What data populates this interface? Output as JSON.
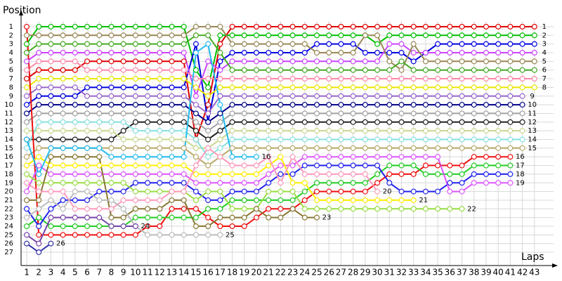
{
  "chart_data": {
    "type": "line",
    "y_label": "Position",
    "x_label": "Laps",
    "x": [
      1,
      2,
      3,
      4,
      5,
      6,
      7,
      8,
      9,
      10,
      11,
      12,
      13,
      14,
      15,
      16,
      17,
      18,
      19,
      20,
      21,
      22,
      23,
      24,
      25,
      26,
      27,
      28,
      29,
      30,
      31,
      32,
      33,
      34,
      35,
      36,
      37,
      38,
      39,
      40,
      41,
      42,
      43
    ],
    "xlim": [
      0,
      44
    ],
    "xticks": [
      1,
      2,
      3,
      4,
      5,
      6,
      7,
      8,
      9,
      10,
      11,
      12,
      13,
      14,
      15,
      16,
      17,
      18,
      19,
      20,
      21,
      22,
      23,
      24,
      25,
      26,
      27,
      28,
      29,
      30,
      31,
      32,
      33,
      34,
      35,
      36,
      37,
      38,
      39,
      40,
      41,
      42,
      43
    ],
    "ylim": [
      0,
      28
    ],
    "y_reversed": true,
    "yticks": [
      1,
      2,
      3,
      4,
      5,
      6,
      7,
      8,
      9,
      10,
      11,
      12,
      13,
      14,
      15,
      16,
      17,
      18,
      19,
      20,
      21,
      22,
      23,
      24,
      25,
      26,
      27
    ],
    "grid": true,
    "series": [
      {
        "color": "#e00000",
        "values": [
          7,
          6,
          6,
          6,
          6,
          5,
          5,
          5,
          5,
          5,
          5,
          5,
          5,
          5,
          14,
          10,
          3,
          1,
          1,
          1,
          1,
          1,
          1,
          1,
          1,
          1,
          1,
          1,
          1,
          1,
          1,
          1,
          1,
          1,
          1,
          1,
          1,
          1,
          1,
          1,
          1,
          1,
          1
        ]
      },
      {
        "color": "#00c000",
        "values": [
          3,
          1,
          1,
          1,
          1,
          1,
          1,
          1,
          1,
          1,
          1,
          1,
          1,
          1,
          6,
          8,
          2,
          2,
          2,
          2,
          2,
          2,
          2,
          2,
          2,
          2,
          2,
          2,
          2,
          3,
          2,
          2,
          2,
          2,
          2,
          2,
          2,
          2,
          2,
          2,
          2,
          2,
          2
        ]
      },
      {
        "color": "#0000e0",
        "values": [
          10,
          9,
          9,
          9,
          9,
          8,
          8,
          8,
          8,
          8,
          8,
          8,
          8,
          8,
          3,
          12,
          5,
          4,
          4,
          4,
          4,
          4,
          4,
          4,
          3,
          3,
          3,
          3,
          4,
          4,
          4,
          4,
          5,
          4,
          3,
          3,
          3,
          3,
          3,
          3,
          3,
          3,
          3
        ]
      },
      {
        "color": "#cc44ff",
        "values": [
          5,
          4,
          4,
          4,
          4,
          4,
          4,
          4,
          4,
          4,
          4,
          4,
          4,
          4,
          9,
          5,
          6,
          5,
          5,
          5,
          5,
          5,
          5,
          5,
          5,
          5,
          5,
          5,
          5,
          5,
          3,
          3,
          4,
          4,
          4,
          4,
          4,
          4,
          4,
          4,
          4,
          4,
          4
        ]
      },
      {
        "color": "#998855",
        "values": [
          2,
          2,
          2,
          2,
          2,
          2,
          2,
          2,
          2,
          2,
          2,
          2,
          2,
          2,
          1,
          1,
          1,
          3,
          3,
          3,
          3,
          3,
          3,
          3,
          4,
          4,
          4,
          4,
          2,
          2,
          5,
          6,
          3,
          5,
          5,
          5,
          5,
          5,
          5,
          5,
          5,
          5,
          5
        ]
      },
      {
        "color": "#44aa22",
        "values": [
          4,
          3,
          3,
          3,
          3,
          3,
          3,
          3,
          3,
          3,
          3,
          3,
          3,
          3,
          2,
          2,
          4,
          6,
          6,
          6,
          6,
          6,
          6,
          6,
          6,
          6,
          6,
          6,
          6,
          6,
          6,
          5,
          6,
          6,
          6,
          6,
          6,
          6,
          6,
          6,
          6,
          6,
          6
        ]
      },
      {
        "color": "#ff88aa",
        "values": [
          6,
          5,
          5,
          5,
          5,
          6,
          6,
          6,
          6,
          6,
          6,
          6,
          6,
          6,
          7,
          7,
          7,
          7,
          7,
          7,
          7,
          7,
          7,
          7,
          7,
          7,
          7,
          7,
          7,
          7,
          7,
          7,
          7,
          7,
          7,
          7,
          7,
          7,
          7,
          7,
          7,
          7,
          7
        ]
      },
      {
        "color": "#e8e800",
        "values": [
          8,
          7,
          7,
          7,
          7,
          7,
          7,
          7,
          7,
          7,
          7,
          7,
          7,
          7,
          8,
          9,
          8,
          8,
          8,
          8,
          8,
          8,
          8,
          8,
          8,
          8,
          8,
          8,
          8,
          8,
          8,
          8,
          8,
          8,
          8,
          8,
          8,
          8,
          8,
          8,
          8,
          8,
          8
        ]
      },
      {
        "color": "#9966cc",
        "values": [
          9,
          8,
          8,
          8,
          8,
          9,
          9,
          9,
          9,
          9,
          9,
          9,
          9,
          9,
          10,
          11,
          9,
          9,
          9,
          9,
          9,
          9,
          9,
          9,
          9,
          9,
          9,
          9,
          9,
          9,
          9,
          9,
          9,
          9,
          9,
          9,
          9,
          9,
          9,
          9,
          9,
          9,
          null
        ]
      },
      {
        "color": "#000088",
        "values": [
          11,
          10,
          10,
          10,
          10,
          10,
          10,
          10,
          10,
          10,
          10,
          10,
          10,
          10,
          11,
          12,
          11,
          10,
          10,
          10,
          10,
          10,
          10,
          10,
          10,
          10,
          10,
          10,
          10,
          10,
          10,
          10,
          10,
          10,
          10,
          10,
          10,
          10,
          10,
          10,
          10,
          10,
          null
        ]
      },
      {
        "color": "#a0a0a0",
        "values": [
          12,
          11,
          11,
          11,
          11,
          11,
          11,
          11,
          11,
          11,
          11,
          11,
          11,
          11,
          12,
          13,
          12,
          11,
          11,
          11,
          11,
          11,
          11,
          11,
          11,
          11,
          11,
          11,
          11,
          11,
          11,
          11,
          11,
          11,
          11,
          11,
          11,
          11,
          11,
          11,
          11,
          11,
          null
        ]
      },
      {
        "color": "#222222",
        "values": [
          14,
          14,
          14,
          14,
          14,
          14,
          14,
          14,
          13,
          12,
          12,
          12,
          12,
          12,
          13,
          14,
          13,
          12,
          12,
          12,
          12,
          12,
          12,
          12,
          12,
          12,
          12,
          12,
          12,
          12,
          12,
          12,
          12,
          12,
          12,
          12,
          12,
          12,
          12,
          12,
          12,
          12,
          null
        ]
      },
      {
        "color": "#c8d890",
        "values": [
          13,
          13,
          13,
          13,
          13,
          13,
          13,
          13,
          14,
          14,
          14,
          14,
          14,
          14,
          15,
          15,
          14,
          13,
          13,
          13,
          13,
          13,
          13,
          13,
          13,
          13,
          13,
          13,
          13,
          13,
          13,
          13,
          13,
          13,
          13,
          13,
          13,
          13,
          13,
          13,
          13,
          13,
          null
        ]
      },
      {
        "color": "#88e0e0",
        "values": [
          15,
          12,
          12,
          12,
          12,
          12,
          12,
          12,
          12,
          13,
          13,
          13,
          13,
          13,
          14,
          16,
          15,
          14,
          14,
          14,
          14,
          14,
          14,
          14,
          14,
          14,
          14,
          14,
          14,
          14,
          14,
          14,
          14,
          14,
          14,
          14,
          14,
          14,
          14,
          14,
          14,
          14,
          null
        ]
      },
      {
        "color": "#b8a868",
        "values": [
          16,
          15,
          15,
          15,
          15,
          15,
          15,
          15,
          15,
          15,
          15,
          15,
          15,
          15,
          16,
          17,
          16,
          15,
          15,
          15,
          15,
          15,
          15,
          15,
          15,
          15,
          15,
          15,
          15,
          15,
          15,
          15,
          15,
          15,
          15,
          15,
          15,
          15,
          15,
          15,
          15,
          15,
          null
        ]
      },
      {
        "color": "#ee1111",
        "values": [
          1,
          25,
          25,
          25,
          25,
          25,
          25,
          25,
          25,
          25,
          24,
          24,
          22,
          22,
          22,
          23,
          24,
          24,
          24,
          23,
          22,
          22,
          22,
          21,
          20,
          20,
          20,
          20,
          20,
          19,
          18,
          18,
          18,
          17,
          17,
          17,
          17,
          16,
          16,
          16,
          16,
          null,
          null
        ]
      },
      {
        "color": "#22cc22",
        "values": [
          24,
          23,
          24,
          24,
          24,
          24,
          24,
          24,
          24,
          23,
          23,
          23,
          23,
          23,
          23,
          22,
          22,
          21,
          21,
          21,
          21,
          21,
          21,
          20,
          19,
          19,
          19,
          19,
          19,
          18,
          17,
          17,
          17,
          18,
          18,
          18,
          18,
          17,
          17,
          17,
          17,
          null,
          null
        ]
      },
      {
        "color": "#2222ee",
        "values": [
          22,
          24,
          22,
          21,
          21,
          21,
          20,
          20,
          20,
          19,
          19,
          19,
          19,
          19,
          20,
          21,
          21,
          20,
          20,
          20,
          19,
          18,
          18,
          17,
          17,
          17,
          17,
          17,
          17,
          17,
          19,
          20,
          20,
          20,
          20,
          19,
          19,
          18,
          18,
          18,
          18,
          null,
          null
        ]
      },
      {
        "color": "#dd55ff",
        "values": [
          20,
          17,
          18,
          18,
          18,
          18,
          18,
          18,
          18,
          18,
          18,
          18,
          18,
          18,
          19,
          19,
          19,
          19,
          19,
          19,
          18,
          17,
          17,
          16,
          16,
          16,
          16,
          16,
          16,
          16,
          16,
          16,
          16,
          16,
          16,
          20,
          20,
          19,
          19,
          19,
          19,
          null,
          null
        ]
      },
      {
        "color": "#99dd44",
        "values": [
          18,
          19,
          19,
          19,
          19,
          19,
          19,
          19,
          19,
          20,
          20,
          20,
          20,
          20,
          21,
          20,
          20,
          22,
          22,
          22,
          20,
          20,
          20,
          22,
          22,
          22,
          22,
          22,
          22,
          22,
          22,
          22,
          22,
          22,
          22,
          22,
          22,
          null,
          null,
          null,
          null,
          null,
          null
        ]
      },
      {
        "color": "#ffee00",
        "values": [
          17,
          16,
          17,
          17,
          17,
          17,
          17,
          17,
          17,
          17,
          17,
          17,
          17,
          17,
          18,
          18,
          18,
          18,
          18,
          18,
          17,
          16,
          19,
          19,
          21,
          21,
          21,
          21,
          21,
          21,
          21,
          21,
          21,
          null,
          null,
          null,
          null,
          null,
          null,
          null,
          null,
          null,
          null
        ]
      },
      {
        "color": "#ff99bb",
        "values": [
          19,
          20,
          20,
          20,
          22,
          22,
          22,
          22,
          21,
          21,
          21,
          21,
          20,
          20,
          17,
          15,
          16,
          17,
          17,
          17,
          16,
          19,
          16,
          18,
          18,
          18,
          18,
          18,
          18,
          20,
          null,
          null,
          null,
          null,
          null,
          null,
          null,
          null,
          null,
          null,
          null,
          null,
          null
        ]
      },
      {
        "color": "#887733",
        "values": [
          21,
          21,
          16,
          16,
          16,
          16,
          16,
          23,
          23,
          22,
          22,
          22,
          21,
          21,
          24,
          24,
          23,
          23,
          23,
          22,
          23,
          23,
          22,
          23,
          23,
          null,
          null,
          null,
          null,
          null,
          null,
          null,
          null,
          null,
          null,
          null,
          null,
          null,
          null,
          null,
          null,
          null,
          null
        ]
      },
      {
        "color": "#22bbee",
        "values": [
          14,
          18,
          15,
          15,
          15,
          15,
          15,
          16,
          16,
          16,
          16,
          16,
          16,
          16,
          4,
          3,
          10,
          16,
          16,
          16,
          null,
          null,
          null,
          null,
          null,
          null,
          null,
          null,
          null,
          null,
          null,
          null,
          null,
          null,
          null,
          null,
          null,
          null,
          null,
          null,
          null,
          null,
          null
        ]
      },
      {
        "color": "#bbbbbb",
        "values": [
          23,
          22,
          21,
          22,
          20,
          20,
          21,
          21,
          22,
          24,
          25,
          25,
          25,
          25,
          25,
          25,
          25,
          null,
          null,
          null,
          null,
          null,
          null,
          null,
          null,
          null,
          null,
          null,
          null,
          null,
          null,
          null,
          null,
          null,
          null,
          null,
          null,
          null,
          null,
          null,
          null,
          null,
          null
        ]
      },
      {
        "color": "#7744aa",
        "values": [
          25,
          26,
          23,
          23,
          23,
          23,
          23,
          24,
          24,
          24,
          null,
          null,
          null,
          null,
          null,
          null,
          null,
          null,
          null,
          null,
          null,
          null,
          null,
          null,
          null,
          null,
          null,
          null,
          null,
          null,
          null,
          null,
          null,
          null,
          null,
          null,
          null,
          null,
          null,
          null,
          null,
          null,
          null
        ]
      },
      {
        "color": "#3333aa",
        "values": [
          26,
          27,
          26,
          null,
          null,
          null,
          null,
          null,
          null,
          null,
          null,
          null,
          null,
          null,
          null,
          null,
          null,
          null,
          null,
          null,
          null,
          null,
          null,
          null,
          null,
          null,
          null,
          null,
          null,
          null,
          null,
          null,
          null,
          null,
          null,
          null,
          null,
          null,
          null,
          null,
          null,
          null,
          null
        ]
      }
    ]
  }
}
